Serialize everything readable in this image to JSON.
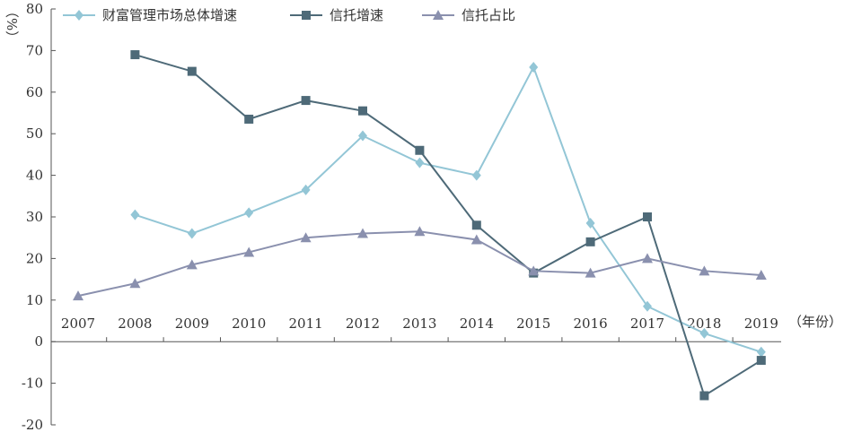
{
  "chart_data": {
    "type": "line",
    "ylabel": "（%）",
    "xlabel": "（年份）",
    "ylim": [
      -20,
      80
    ],
    "yticks": [
      -20,
      -10,
      0,
      10,
      20,
      30,
      40,
      50,
      60,
      70,
      80
    ],
    "categories": [
      "2007",
      "2008",
      "2009",
      "2010",
      "2011",
      "2012",
      "2013",
      "2014",
      "2015",
      "2016",
      "2017",
      "2018",
      "2019"
    ],
    "legend_position": "top-left",
    "series": [
      {
        "name": "财富管理市场总体增速",
        "color": "#93c6d6",
        "marker": "diamond",
        "values": [
          null,
          30.5,
          26,
          31,
          36.5,
          49.5,
          43,
          40,
          66,
          28.5,
          8.5,
          2,
          -2.5
        ]
      },
      {
        "name": "信托增速",
        "color": "#4e6a78",
        "marker": "square",
        "values": [
          null,
          69,
          65,
          53.5,
          58,
          55.5,
          46,
          28,
          16.5,
          24,
          30,
          -13,
          -4.5
        ]
      },
      {
        "name": "信托占比",
        "color": "#8a90ae",
        "marker": "triangle",
        "values": [
          11,
          14,
          18.5,
          21.5,
          25,
          26,
          26.5,
          24.5,
          17,
          16.5,
          20,
          17,
          16
        ]
      }
    ]
  }
}
